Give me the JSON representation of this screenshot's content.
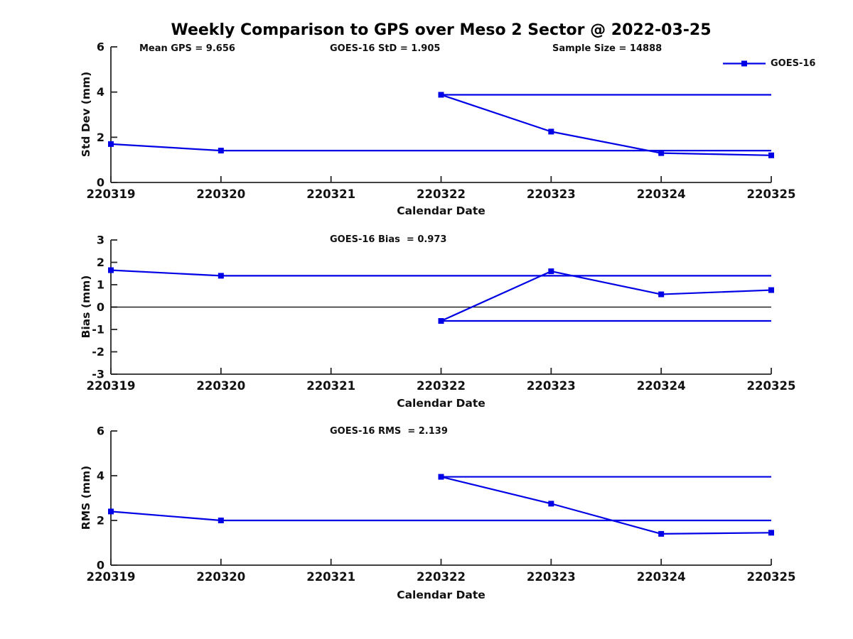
{
  "page": {
    "title": "Weekly Comparison to GPS over Meso 2 Sector @ 2022-03-25"
  },
  "legend": {
    "label": "GOES-16",
    "color": "#0000e6",
    "marker": "filled-square"
  },
  "colors": {
    "series_blue": "#0000e6",
    "axis": "#262626",
    "zero_line": "#000000",
    "background": "#ffffff"
  },
  "chart_data": [
    {
      "type": "line",
      "name": "std-dev-subplot",
      "title": "",
      "ylabel": "Std Dev (mm)",
      "xlabel": "Calendar Date",
      "ylim": [
        0,
        6
      ],
      "yticks": [
        0,
        2,
        4,
        6
      ],
      "xlim": [
        220319,
        220325
      ],
      "x_ticklabels": [
        "220319",
        "220320",
        "220321",
        "220322",
        "220323",
        "220324",
        "220325"
      ],
      "grid": false,
      "legend_position": "top-right-above-axes",
      "annotations": [
        {
          "text": "Mean GPS = 9.656"
        },
        {
          "text": "GOES-16 StD = 1.905"
        },
        {
          "text": "Sample Size = 14888"
        }
      ],
      "series": [
        {
          "name": "GOES-16",
          "color": "#0000e6",
          "marker": "square",
          "markers": [
            [
              220319,
              1.7
            ],
            [
              220320,
              1.41
            ],
            [
              220322,
              3.88
            ],
            [
              220323,
              2.25
            ],
            [
              220324,
              1.3
            ],
            [
              220325,
              1.2
            ]
          ],
          "segments": [
            [
              [
                220319,
                1.7
              ],
              [
                220320,
                1.41
              ]
            ],
            [
              [
                220320,
                1.41
              ],
              [
                220325,
                1.41
              ]
            ],
            [
              [
                220322,
                3.88
              ],
              [
                220323,
                2.25
              ],
              [
                220324,
                1.3
              ],
              [
                220325,
                1.2
              ]
            ],
            [
              [
                220322,
                3.88
              ],
              [
                220325,
                3.88
              ]
            ]
          ]
        }
      ],
      "zero_line": false
    },
    {
      "type": "line",
      "name": "bias-subplot",
      "title": "",
      "ylabel": "Bias (mm)",
      "xlabel": "Calendar Date",
      "ylim": [
        -3,
        3
      ],
      "yticks": [
        3,
        2,
        1,
        0,
        -1,
        -2,
        -3
      ],
      "xlim": [
        220319,
        220325
      ],
      "x_ticklabels": [
        "220319",
        "220320",
        "220321",
        "220322",
        "220323",
        "220324",
        "220325"
      ],
      "grid": false,
      "annotations": [
        {
          "text": "GOES-16 Bias  = 0.973"
        }
      ],
      "series": [
        {
          "name": "GOES-16",
          "color": "#0000e6",
          "marker": "square",
          "markers": [
            [
              220319,
              1.65
            ],
            [
              220320,
              1.4
            ],
            [
              220322,
              -0.62
            ],
            [
              220323,
              1.6
            ],
            [
              220324,
              0.57
            ],
            [
              220325,
              0.76
            ]
          ],
          "segments": [
            [
              [
                220319,
                1.65
              ],
              [
                220320,
                1.4
              ]
            ],
            [
              [
                220320,
                1.4
              ],
              [
                220325,
                1.4
              ]
            ],
            [
              [
                220322,
                -0.62
              ],
              [
                220323,
                1.6
              ],
              [
                220324,
                0.57
              ],
              [
                220325,
                0.76
              ]
            ],
            [
              [
                220322,
                -0.62
              ],
              [
                220325,
                -0.62
              ]
            ]
          ]
        }
      ],
      "zero_line": true
    },
    {
      "type": "line",
      "name": "rms-subplot",
      "title": "",
      "ylabel": "RMS (mm)",
      "xlabel": "Calendar Date",
      "ylim": [
        0,
        6
      ],
      "yticks": [
        0,
        2,
        4,
        6
      ],
      "xlim": [
        220319,
        220325
      ],
      "x_ticklabels": [
        "220319",
        "220320",
        "220321",
        "220322",
        "220323",
        "220324",
        "220325"
      ],
      "grid": false,
      "annotations": [
        {
          "text": "GOES-16 RMS  = 2.139"
        }
      ],
      "series": [
        {
          "name": "GOES-16",
          "color": "#0000e6",
          "marker": "square",
          "markers": [
            [
              220319,
              2.4
            ],
            [
              220320,
              2.0
            ],
            [
              220322,
              3.95
            ],
            [
              220323,
              2.75
            ],
            [
              220324,
              1.4
            ],
            [
              220325,
              1.45
            ]
          ],
          "segments": [
            [
              [
                220319,
                2.4
              ],
              [
                220320,
                2.0
              ]
            ],
            [
              [
                220320,
                2.0
              ],
              [
                220325,
                2.0
              ]
            ],
            [
              [
                220322,
                3.95
              ],
              [
                220323,
                2.75
              ],
              [
                220324,
                1.4
              ],
              [
                220325,
                1.45
              ]
            ],
            [
              [
                220322,
                3.95
              ],
              [
                220325,
                3.95
              ]
            ]
          ]
        }
      ],
      "zero_line": false
    }
  ]
}
